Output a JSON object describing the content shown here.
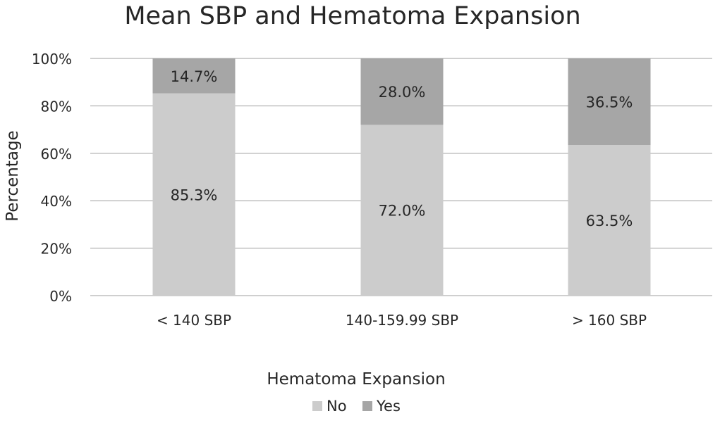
{
  "chart_data": {
    "type": "bar",
    "stacked": true,
    "percent_stacked": true,
    "title": "Mean SBP and Hematoma Expansion",
    "xlabel": "",
    "ylabel": "Percentage",
    "categories": [
      "< 140 SBP",
      "140-159.99 SBP",
      "> 160 SBP"
    ],
    "series": [
      {
        "name": "No",
        "values": [
          85.3,
          72.0,
          63.5
        ],
        "labels": [
          "85.3%",
          "72.0%",
          "63.5%"
        ],
        "color": "#cccccc"
      },
      {
        "name": "Yes",
        "values": [
          14.7,
          28.0,
          36.5
        ],
        "labels": [
          "14.7%",
          "28.0%",
          "36.5%"
        ],
        "color": "#a6a6a6"
      }
    ],
    "ylim": [
      0,
      100
    ],
    "yticks": [
      0,
      20,
      40,
      60,
      80,
      100
    ],
    "ytick_labels": [
      "0%",
      "20%",
      "40%",
      "60%",
      "80%",
      "100%"
    ],
    "grid": true,
    "legend_title": "Hematoma Expansion",
    "legend_position": "bottom"
  }
}
